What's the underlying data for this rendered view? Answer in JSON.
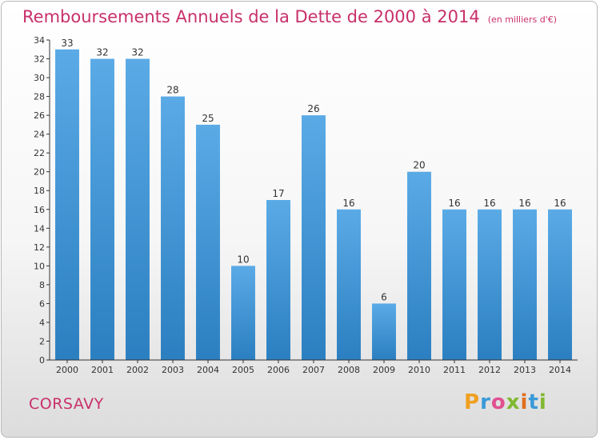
{
  "chart_data": {
    "type": "bar",
    "title": "Remboursements Annuels de la Dette de 2000 à 2014",
    "subtitle": "(en milliers d'€)",
    "xlabel": "",
    "ylabel": "",
    "categories": [
      "2000",
      "2001",
      "2002",
      "2003",
      "2004",
      "2005",
      "2006",
      "2007",
      "2008",
      "2009",
      "2010",
      "2011",
      "2012",
      "2013",
      "2014"
    ],
    "values": [
      33,
      32,
      32,
      28,
      25,
      10,
      17,
      26,
      16,
      6,
      20,
      16,
      16,
      16,
      16
    ],
    "data_labels": [
      "33",
      "32",
      "32",
      "28",
      "25",
      "10",
      "17",
      "26",
      "16",
      "6",
      "20",
      "16",
      "16",
      "16",
      "16"
    ],
    "ylim": [
      0,
      34
    ],
    "yticks": [
      0,
      2,
      4,
      6,
      8,
      10,
      12,
      14,
      16,
      18,
      20,
      22,
      24,
      26,
      28,
      30,
      32,
      34
    ],
    "grid": false,
    "legend": "none",
    "bar_color_top": "#5aaae6",
    "bar_color_bottom": "#2b7fc0"
  },
  "footer": {
    "commune": "CORSAVY",
    "brand": "Proxiti",
    "brand_colors": [
      "#f0a020",
      "#3a9ad8",
      "#e05090",
      "#80b830",
      "#e07020",
      "#3a9ad8",
      "#80b830"
    ]
  },
  "colors": {
    "accent": "#c8306a",
    "axis": "#333333"
  }
}
